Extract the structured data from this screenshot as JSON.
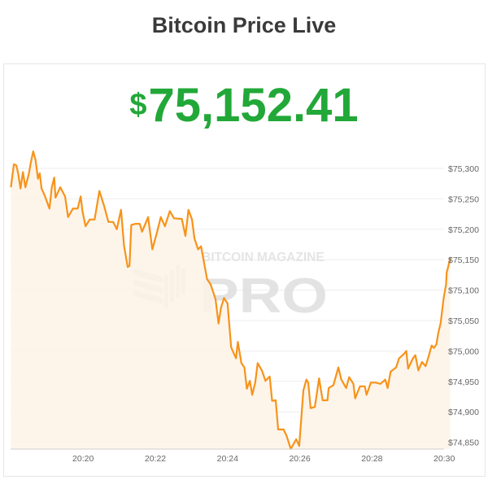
{
  "header": {
    "title": "Bitcoin Price Live"
  },
  "price": {
    "currency_symbol": "$",
    "value": "75,152.41",
    "color": "#22a838"
  },
  "watermark": {
    "text_top": "BITCOIN MAGAZINE",
    "text_main": "PRO"
  },
  "chart_data": {
    "type": "area",
    "line_color": "#f7931a",
    "fill_color": "#fdf3e6",
    "xlim": [
      "20:18:00",
      "20:30:10"
    ],
    "ylim": [
      74840,
      75330
    ],
    "grid": true,
    "y_axis_position": "right",
    "x_ticks": [
      "20:20",
      "20:22",
      "20:24",
      "20:26",
      "20:28",
      "20:30"
    ],
    "y_ticks": [
      {
        "value": 75300,
        "label": "$75,300"
      },
      {
        "value": 75250,
        "label": "$75,250"
      },
      {
        "value": 75200,
        "label": "$75,200"
      },
      {
        "value": 75150,
        "label": "$75,150"
      },
      {
        "value": 75100,
        "label": "$75,100"
      },
      {
        "value": 75050,
        "label": "$75,050"
      },
      {
        "value": 75000,
        "label": "$75,000"
      },
      {
        "value": 74950,
        "label": "$74,950"
      },
      {
        "value": 74900,
        "label": "$74,900"
      },
      {
        "value": 74850,
        "label": "$74,850"
      }
    ],
    "x": [
      "20:18:00",
      "20:18:05",
      "20:18:09",
      "20:18:12",
      "20:18:16",
      "20:18:20",
      "20:18:24",
      "20:18:30",
      "20:18:33",
      "20:18:37",
      "20:18:41",
      "20:18:45",
      "20:18:48",
      "20:18:51",
      "20:18:56",
      "20:19:04",
      "20:19:08",
      "20:19:12",
      "20:19:14",
      "20:19:22",
      "20:19:30",
      "20:19:35",
      "20:19:43",
      "20:19:51",
      "20:19:56",
      "20:19:59",
      "20:20:04",
      "20:20:11",
      "20:20:19",
      "20:20:27",
      "20:20:35",
      "20:20:42",
      "20:20:50",
      "20:20:56",
      "20:21:03",
      "20:21:08",
      "20:21:14",
      "20:21:17",
      "20:21:20",
      "20:21:27",
      "20:21:34",
      "20:21:38",
      "20:21:48",
      "20:21:55",
      "20:22:03",
      "20:22:09",
      "20:22:16",
      "20:22:24",
      "20:22:31",
      "20:22:44",
      "20:22:50",
      "20:22:55",
      "20:23:01",
      "20:23:05",
      "20:23:11",
      "20:23:16",
      "20:23:21",
      "20:23:26",
      "20:23:32",
      "20:23:40",
      "20:23:45",
      "20:23:49",
      "20:23:54",
      "20:24:00",
      "20:24:06",
      "20:24:14",
      "20:24:17",
      "20:24:23",
      "20:24:28",
      "20:24:32",
      "20:24:37",
      "20:24:41",
      "20:24:46",
      "20:24:50",
      "20:24:57",
      "20:25:03",
      "20:25:10",
      "20:25:14",
      "20:25:20",
      "20:25:24",
      "20:25:33",
      "20:25:38",
      "20:25:45",
      "20:25:54",
      "20:25:59",
      "20:26:06",
      "20:26:11",
      "20:26:14",
      "20:26:18",
      "20:26:25",
      "20:26:32",
      "20:26:38",
      "20:26:46",
      "20:26:48",
      "20:26:56",
      "20:27:04",
      "20:27:09",
      "20:27:17",
      "20:27:22",
      "20:27:29",
      "20:27:32",
      "20:27:40",
      "20:27:48",
      "20:27:51",
      "20:27:58",
      "20:28:06",
      "20:28:14",
      "20:28:22",
      "20:28:26",
      "20:28:31",
      "20:28:40",
      "20:28:45",
      "20:28:53",
      "20:28:57",
      "20:29:00",
      "20:29:08",
      "20:29:12",
      "20:29:17",
      "20:29:23",
      "20:29:29",
      "20:29:34",
      "20:29:39",
      "20:29:43",
      "20:29:47",
      "20:29:50",
      "20:29:54",
      "20:29:59",
      "20:30:03",
      "20:30:04",
      "20:30:06",
      "20:30:10"
    ],
    "y": [
      75269,
      75307,
      75305,
      75292,
      75267,
      75294,
      75269,
      75292,
      75309,
      75328,
      75314,
      75283,
      75292,
      75267,
      75256,
      75234,
      75269,
      75285,
      75252,
      75269,
      75254,
      75220,
      75234,
      75234,
      75254,
      75229,
      75205,
      75216,
      75216,
      75263,
      75238,
      75212,
      75212,
      75200,
      75232,
      75173,
      75138,
      75140,
      75207,
      75209,
      75209,
      75196,
      75220,
      75167,
      75196,
      75220,
      75205,
      75230,
      75218,
      75217,
      75189,
      75232,
      75216,
      75185,
      75167,
      75172,
      75145,
      75118,
      75109,
      75085,
      75045,
      75071,
      75087,
      75078,
      75006,
      74988,
      75015,
      74980,
      74973,
      74938,
      74951,
      74928,
      74948,
      74980,
      74968,
      74951,
      74958,
      74918,
      74919,
      74871,
      74871,
      74861,
      74839,
      74855,
      74844,
      74935,
      74953,
      74948,
      74906,
      74908,
      74955,
      74919,
      74919,
      74939,
      74944,
      74973,
      74953,
      74939,
      74957,
      74946,
      74922,
      74942,
      74942,
      74928,
      74948,
      74948,
      74946,
      74953,
      74939,
      74966,
      74973,
      74988,
      74995,
      75000,
      74971,
      74988,
      74993,
      74968,
      74982,
      74975,
      74991,
      75009,
      75005,
      75011,
      75029,
      75046,
      75087,
      75109,
      75129,
      75136,
      75153
    ]
  }
}
